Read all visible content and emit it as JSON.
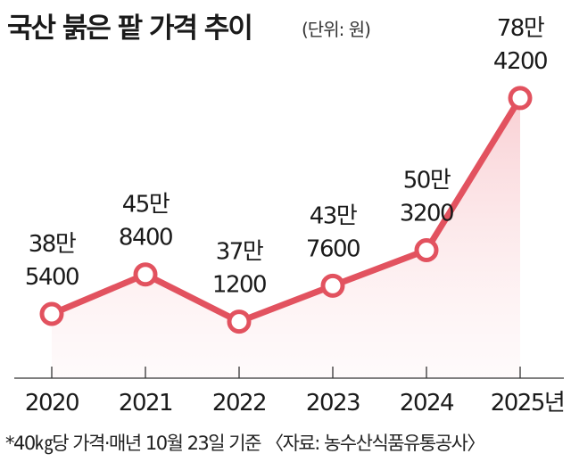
{
  "chart_data": {
    "type": "line",
    "title": "국산 붉은 팥 가격 추이",
    "unit": "(단위: 원)",
    "categories": [
      "2020",
      "2021",
      "2022",
      "2023",
      "2024",
      "2025년"
    ],
    "values": [
      385400,
      458400,
      371200,
      437600,
      503200,
      784200
    ],
    "data_labels": [
      [
        "38만",
        "5400"
      ],
      [
        "45만",
        "8400"
      ],
      [
        "37만",
        "1200"
      ],
      [
        "43만",
        "7600"
      ],
      [
        "50만",
        "3200"
      ],
      [
        "78만",
        "4200"
      ]
    ],
    "ylim": [
      280000,
      820000
    ],
    "grid": false,
    "footnote": "*40㎏당 가격·매년 10월 23일 기준 〈자료: 농수산식품유통공사〉",
    "line_color": "#e2525f"
  }
}
